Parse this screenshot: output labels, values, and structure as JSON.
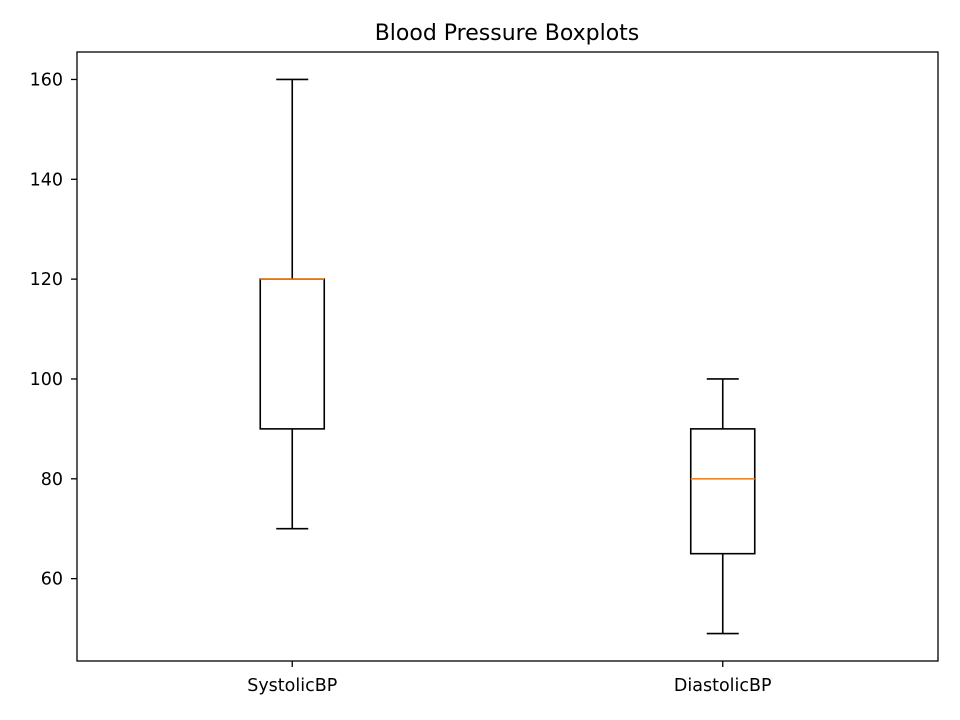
{
  "chart_data": {
    "type": "boxplot",
    "title": "Blood Pressure Boxplots",
    "xlabel": "",
    "ylabel": "",
    "categories": [
      "SystolicBP",
      "DiastolicBP"
    ],
    "boxes": [
      {
        "label": "SystolicBP",
        "whisker_low": 70,
        "q1": 90,
        "median": 120,
        "q3": 120,
        "whisker_high": 160
      },
      {
        "label": "DiastolicBP",
        "whisker_low": 49,
        "q1": 65,
        "median": 80,
        "q3": 90,
        "whisker_high": 100
      }
    ],
    "ylim": [
      43.5,
      165.5
    ],
    "yticks": [
      60,
      80,
      100,
      120,
      140,
      160
    ],
    "grid": false,
    "colors": {
      "box": "#000000",
      "median": "#ff7f0e",
      "axes": "#000000",
      "background": "#ffffff"
    }
  }
}
